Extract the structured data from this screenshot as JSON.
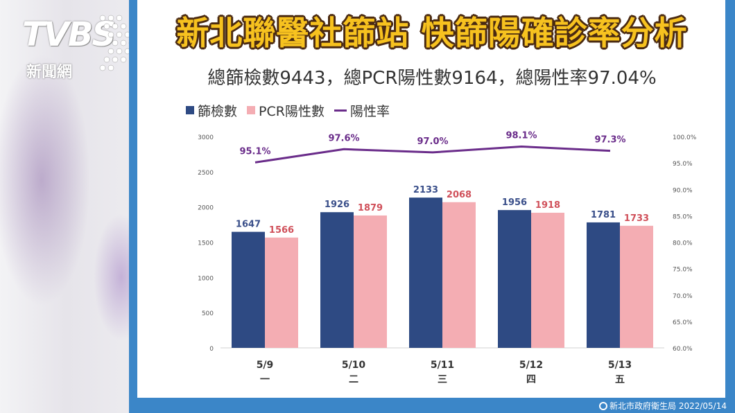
{
  "logo": {
    "brand": "TVBS",
    "sub": "新聞網"
  },
  "header": {
    "title": "新北聯醫社篩站 快篩陽確診率分析",
    "subtitle": "總篩檢數9443，總PCR陽性數9164，總陽性率97.04%"
  },
  "colors": {
    "screened": "#2e4a83",
    "pcr_positive": "#f4adb3",
    "rate": "#6a2c8a",
    "panel": "#3b86c8",
    "title": "#f7c21f"
  },
  "chart_data": {
    "type": "bar",
    "categories": [
      "5/9",
      "5/10",
      "5/11",
      "5/12",
      "5/13"
    ],
    "weekdays": [
      "一",
      "二",
      "三",
      "四",
      "五"
    ],
    "series": [
      {
        "name": "篩檢數",
        "values": [
          1647,
          1926,
          2133,
          1956,
          1781
        ]
      },
      {
        "name": "PCR陽性數",
        "values": [
          1566,
          1879,
          2068,
          1918,
          1733
        ]
      }
    ],
    "line_series": {
      "name": "陽性率",
      "values": [
        95.1,
        97.6,
        97.0,
        98.1,
        97.3
      ],
      "labels": [
        "95.1%",
        "97.6%",
        "97.0%",
        "98.1%",
        "97.3%"
      ]
    },
    "ylim": [
      0,
      3000
    ],
    "yticks": [
      "0",
      "500",
      "1000",
      "1500",
      "2000",
      "2500",
      "3000"
    ],
    "y2lim": [
      60,
      100
    ],
    "y2ticks": [
      "60.0%",
      "65.0%",
      "70.0%",
      "75.0%",
      "80.0%",
      "85.0%",
      "90.0%",
      "95.0%",
      "100.0%"
    ],
    "legend": "top-left",
    "grid": false
  },
  "footer": {
    "source": "新北市政府衛生局 2022/05/14"
  }
}
